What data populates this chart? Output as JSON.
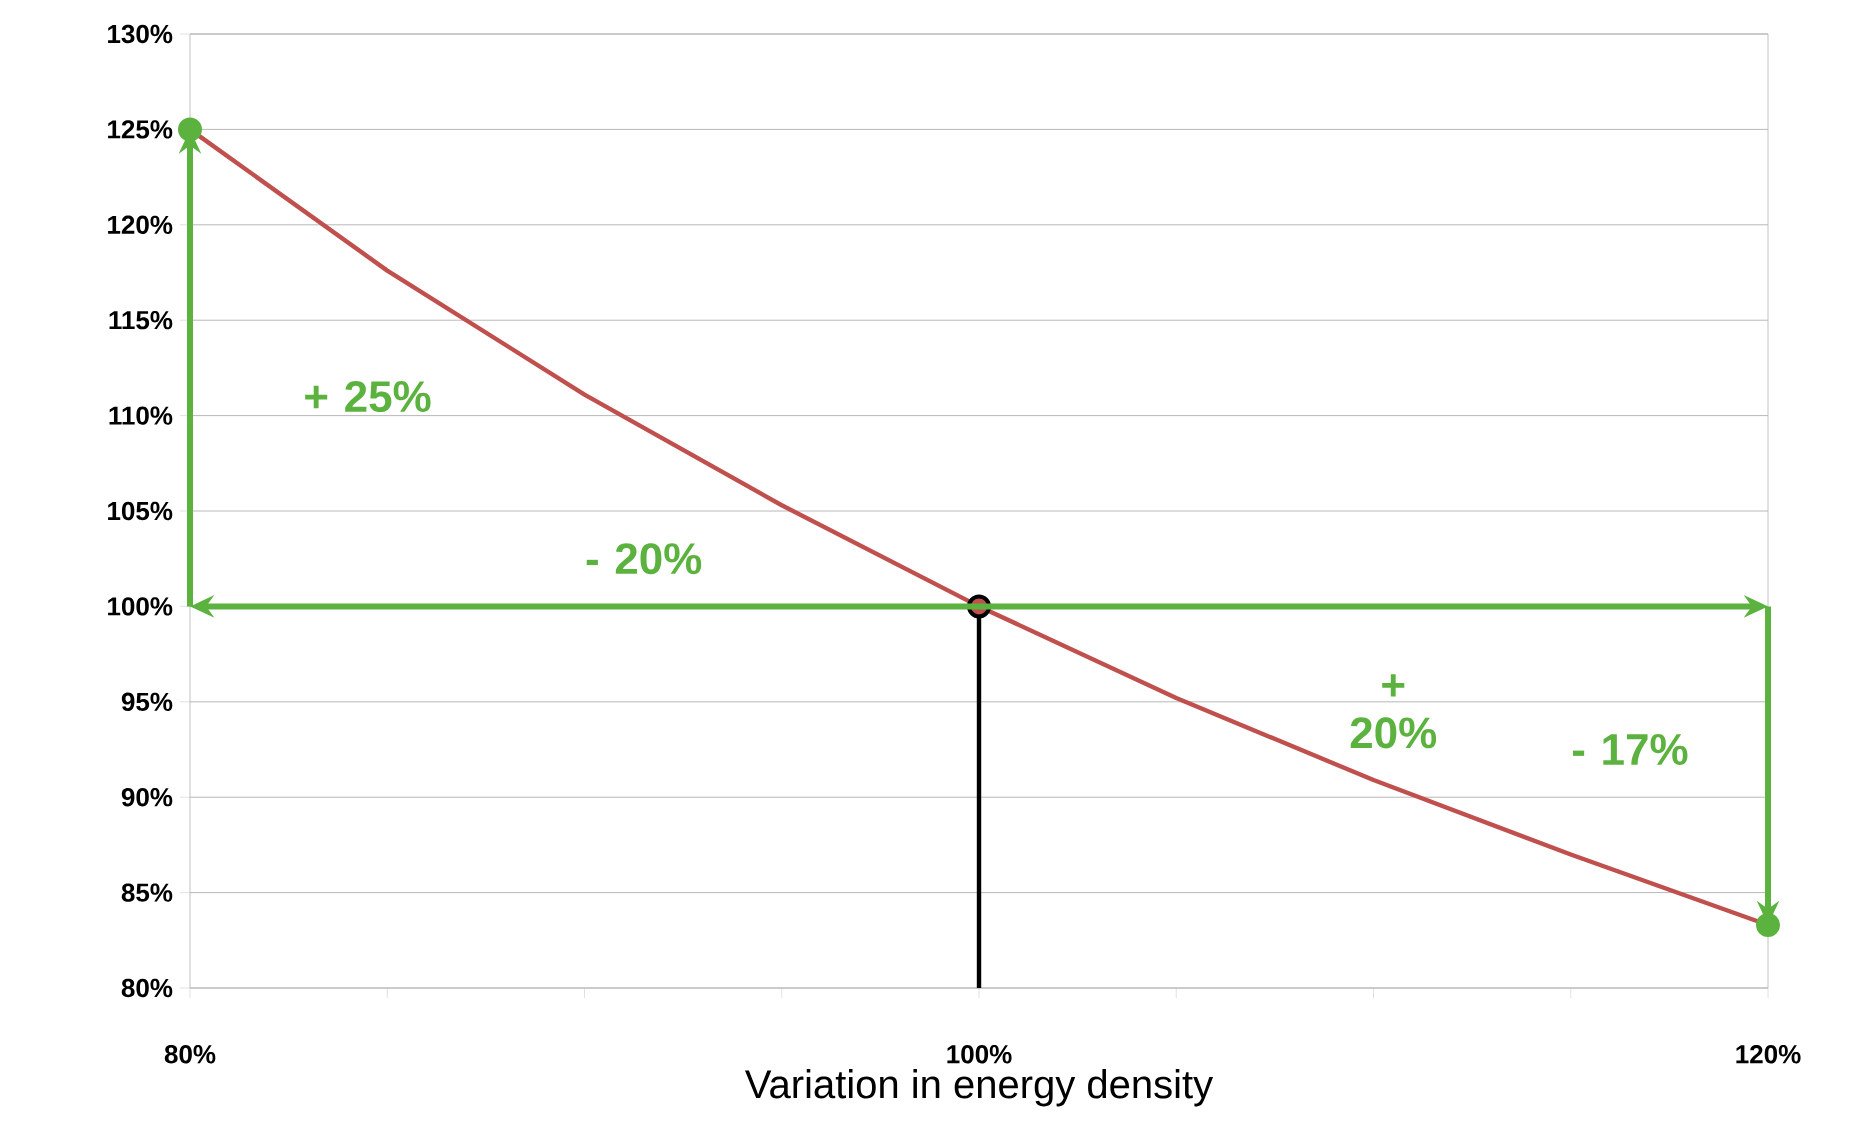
{
  "chart_data": {
    "type": "line",
    "xlabel": "Variation in energy density",
    "xlim": [
      80,
      120
    ],
    "ylim": [
      80,
      130
    ],
    "xticks": [
      {
        "value": 80,
        "label": "80%"
      },
      {
        "value": 85,
        "label": null
      },
      {
        "value": 90,
        "label": null
      },
      {
        "value": 95,
        "label": null
      },
      {
        "value": 100,
        "label": "100%"
      },
      {
        "value": 105,
        "label": null
      },
      {
        "value": 110,
        "label": null
      },
      {
        "value": 115,
        "label": null
      },
      {
        "value": 120,
        "label": "120%"
      }
    ],
    "yticks": [
      {
        "value": 80,
        "label": "80%"
      },
      {
        "value": 85,
        "label": "85%"
      },
      {
        "value": 90,
        "label": "90%"
      },
      {
        "value": 95,
        "label": "95%"
      },
      {
        "value": 100,
        "label": "100%"
      },
      {
        "value": 105,
        "label": "105%"
      },
      {
        "value": 110,
        "label": "110%"
      },
      {
        "value": 115,
        "label": "115%"
      },
      {
        "value": 120,
        "label": "120%"
      },
      {
        "value": 125,
        "label": "125%"
      },
      {
        "value": 130,
        "label": "130%"
      }
    ],
    "grid": "y",
    "series": [
      {
        "color": "#c0504d",
        "line_style": "solid",
        "x": [
          80,
          85,
          90,
          95,
          100,
          105,
          110,
          115,
          120
        ],
        "values": [
          125,
          117.6,
          111.1,
          105.3,
          100,
          95.2,
          90.9,
          87,
          83.3
        ]
      },
      {
        "color": "#000000",
        "line_style": "solid",
        "x": [
          100,
          100
        ],
        "values": [
          80,
          100
        ]
      },
      {
        "type": "scatter",
        "marker": "circle",
        "colors": [
          "#5cb23e",
          "#c0504d",
          "#5cb23e"
        ],
        "x": [
          80,
          100,
          120
        ],
        "values": [
          125,
          100,
          83.3
        ]
      }
    ],
    "annotations": [
      "+ 25%",
      "- 20%",
      "+ 20%",
      "- 17%"
    ]
  }
}
